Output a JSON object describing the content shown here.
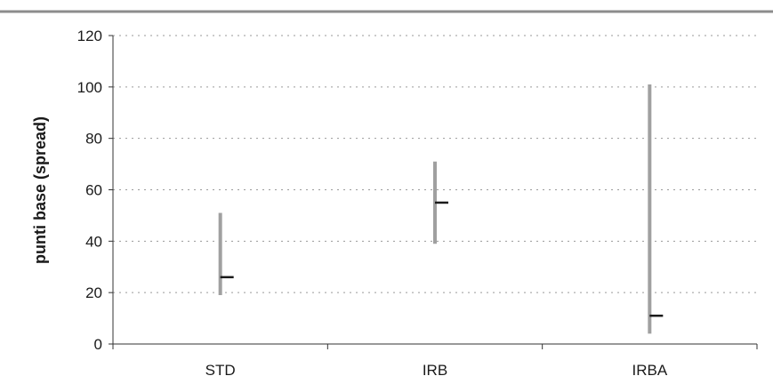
{
  "chart_data": {
    "type": "range",
    "title": "",
    "ylabel": "punti base (spread)",
    "xlabel": "",
    "ylim": [
      0,
      120
    ],
    "yticks": [
      0,
      20,
      40,
      60,
      80,
      100,
      120
    ],
    "grid": true,
    "categories": [
      "STD",
      "IRB",
      "IRBA"
    ],
    "series": [
      {
        "low": 19,
        "high": 51,
        "mid": 26
      },
      {
        "low": 39,
        "high": 71,
        "mid": 55
      },
      {
        "low": 4,
        "high": 101,
        "mid": 11
      }
    ],
    "colors": {
      "range": "#a0a0a0",
      "marker": "#1a1a1a",
      "grid": "#9a9a9a",
      "axis": "#333333",
      "top_rule": "#8c8c8c"
    }
  }
}
